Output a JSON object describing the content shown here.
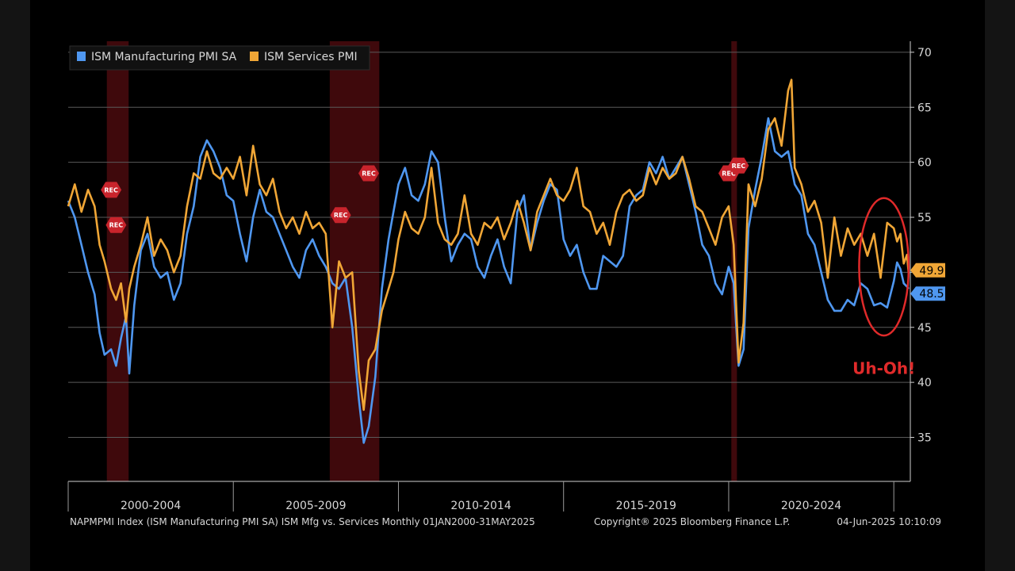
{
  "chart_data": {
    "type": "line",
    "title": "ISM Mfg vs. Services",
    "legend": [
      {
        "name": "ISM Manufacturing PMI SA",
        "color": "#4f97f0"
      },
      {
        "name": "ISM Services PMI",
        "color": "#f0a636"
      }
    ],
    "legend_position": "top-left",
    "x_range": [
      2000.0,
      2025.5
    ],
    "ylim": [
      31,
      71
    ],
    "y_ticks": [
      35,
      40,
      45,
      50,
      55,
      60,
      65,
      70
    ],
    "y_axis_side": "right",
    "x_periods": [
      "2000-2004",
      "2005-2009",
      "2010-2014",
      "2015-2019",
      "2020-2024"
    ],
    "recession_bands": [
      [
        2001.17,
        2001.83
      ],
      [
        2007.92,
        2009.42
      ],
      [
        2020.08,
        2020.25
      ]
    ],
    "rec_markers": [
      {
        "label": "REC",
        "x": 2001.3,
        "y": 57.5
      },
      {
        "label": "REC",
        "x": 2001.45,
        "y": 54.3
      },
      {
        "label": "REC",
        "x": 2008.25,
        "y": 55.2
      },
      {
        "label": "REC",
        "x": 2009.1,
        "y": 59.0
      },
      {
        "label": "REC",
        "x": 2020.0,
        "y": 59.0
      },
      {
        "label": "REC",
        "x": 2020.3,
        "y": 59.7
      }
    ],
    "series": [
      {
        "name": "ISM Manufacturing PMI SA",
        "color": "#4f97f0",
        "last_value": "48.5",
        "points": [
          [
            2000.0,
            56.5
          ],
          [
            2000.2,
            55.0
          ],
          [
            2000.4,
            52.5
          ],
          [
            2000.6,
            50.0
          ],
          [
            2000.8,
            48.0
          ],
          [
            2000.95,
            44.5
          ],
          [
            2001.1,
            42.5
          ],
          [
            2001.3,
            43.0
          ],
          [
            2001.45,
            41.5
          ],
          [
            2001.6,
            44.0
          ],
          [
            2001.75,
            46.0
          ],
          [
            2001.85,
            40.8
          ],
          [
            2002.0,
            47.0
          ],
          [
            2002.2,
            52.0
          ],
          [
            2002.4,
            53.5
          ],
          [
            2002.6,
            50.5
          ],
          [
            2002.8,
            49.5
          ],
          [
            2003.0,
            50.0
          ],
          [
            2003.2,
            47.5
          ],
          [
            2003.4,
            49.0
          ],
          [
            2003.6,
            53.5
          ],
          [
            2003.8,
            56.0
          ],
          [
            2004.0,
            60.5
          ],
          [
            2004.2,
            62.0
          ],
          [
            2004.4,
            61.0
          ],
          [
            2004.6,
            59.5
          ],
          [
            2004.8,
            57.0
          ],
          [
            2005.0,
            56.5
          ],
          [
            2005.2,
            53.5
          ],
          [
            2005.4,
            51.0
          ],
          [
            2005.6,
            55.0
          ],
          [
            2005.8,
            57.5
          ],
          [
            2006.0,
            55.5
          ],
          [
            2006.2,
            55.0
          ],
          [
            2006.4,
            53.5
          ],
          [
            2006.6,
            52.0
          ],
          [
            2006.8,
            50.5
          ],
          [
            2007.0,
            49.5
          ],
          [
            2007.2,
            52.0
          ],
          [
            2007.4,
            53.0
          ],
          [
            2007.6,
            51.5
          ],
          [
            2007.8,
            50.5
          ],
          [
            2008.0,
            49.0
          ],
          [
            2008.2,
            48.5
          ],
          [
            2008.4,
            49.5
          ],
          [
            2008.6,
            45.0
          ],
          [
            2008.8,
            38.5
          ],
          [
            2008.95,
            34.5
          ],
          [
            2009.1,
            36.0
          ],
          [
            2009.3,
            40.5
          ],
          [
            2009.5,
            48.5
          ],
          [
            2009.7,
            53.0
          ],
          [
            2009.85,
            55.5
          ],
          [
            2010.0,
            58.0
          ],
          [
            2010.2,
            59.5
          ],
          [
            2010.4,
            57.0
          ],
          [
            2010.6,
            56.5
          ],
          [
            2010.8,
            58.0
          ],
          [
            2011.0,
            61.0
          ],
          [
            2011.2,
            60.0
          ],
          [
            2011.4,
            55.0
          ],
          [
            2011.6,
            51.0
          ],
          [
            2011.8,
            52.5
          ],
          [
            2012.0,
            53.5
          ],
          [
            2012.2,
            53.0
          ],
          [
            2012.4,
            50.5
          ],
          [
            2012.6,
            49.5
          ],
          [
            2012.8,
            51.5
          ],
          [
            2013.0,
            53.0
          ],
          [
            2013.2,
            50.5
          ],
          [
            2013.4,
            49.0
          ],
          [
            2013.6,
            55.5
          ],
          [
            2013.8,
            57.0
          ],
          [
            2014.0,
            52.0
          ],
          [
            2014.2,
            54.5
          ],
          [
            2014.4,
            56.5
          ],
          [
            2014.6,
            58.0
          ],
          [
            2014.8,
            57.5
          ],
          [
            2015.0,
            53.0
          ],
          [
            2015.2,
            51.5
          ],
          [
            2015.4,
            52.5
          ],
          [
            2015.6,
            50.0
          ],
          [
            2015.8,
            48.5
          ],
          [
            2016.0,
            48.5
          ],
          [
            2016.2,
            51.5
          ],
          [
            2016.4,
            51.0
          ],
          [
            2016.6,
            50.5
          ],
          [
            2016.8,
            51.5
          ],
          [
            2017.0,
            56.0
          ],
          [
            2017.2,
            57.0
          ],
          [
            2017.4,
            57.5
          ],
          [
            2017.6,
            60.0
          ],
          [
            2017.8,
            59.0
          ],
          [
            2018.0,
            60.5
          ],
          [
            2018.2,
            58.5
          ],
          [
            2018.4,
            59.5
          ],
          [
            2018.6,
            60.5
          ],
          [
            2018.8,
            58.0
          ],
          [
            2019.0,
            55.5
          ],
          [
            2019.2,
            52.5
          ],
          [
            2019.4,
            51.5
          ],
          [
            2019.6,
            49.0
          ],
          [
            2019.8,
            48.0
          ],
          [
            2020.0,
            50.5
          ],
          [
            2020.15,
            49.0
          ],
          [
            2020.3,
            41.5
          ],
          [
            2020.45,
            43.0
          ],
          [
            2020.6,
            54.0
          ],
          [
            2020.8,
            57.5
          ],
          [
            2021.0,
            60.5
          ],
          [
            2021.2,
            64.0
          ],
          [
            2021.4,
            61.0
          ],
          [
            2021.6,
            60.5
          ],
          [
            2021.8,
            61.0
          ],
          [
            2022.0,
            58.0
          ],
          [
            2022.2,
            57.0
          ],
          [
            2022.4,
            53.5
          ],
          [
            2022.6,
            52.5
          ],
          [
            2022.8,
            50.0
          ],
          [
            2023.0,
            47.5
          ],
          [
            2023.2,
            46.5
          ],
          [
            2023.4,
            46.5
          ],
          [
            2023.6,
            47.5
          ],
          [
            2023.8,
            47.0
          ],
          [
            2024.0,
            49.0
          ],
          [
            2024.2,
            48.5
          ],
          [
            2024.4,
            47.0
          ],
          [
            2024.6,
            47.2
          ],
          [
            2024.8,
            46.8
          ],
          [
            2025.0,
            49.2
          ],
          [
            2025.1,
            50.9
          ],
          [
            2025.2,
            50.3
          ],
          [
            2025.3,
            49.0
          ],
          [
            2025.4,
            48.7
          ],
          [
            2025.45,
            48.5
          ]
        ]
      },
      {
        "name": "ISM Services PMI",
        "color": "#f0a636",
        "last_value": "49.9",
        "points": [
          [
            2000.0,
            56.0
          ],
          [
            2000.2,
            58.0
          ],
          [
            2000.4,
            55.5
          ],
          [
            2000.6,
            57.5
          ],
          [
            2000.8,
            56.0
          ],
          [
            2000.95,
            52.5
          ],
          [
            2001.1,
            51.0
          ],
          [
            2001.3,
            48.5
          ],
          [
            2001.45,
            47.5
          ],
          [
            2001.6,
            49.0
          ],
          [
            2001.75,
            45.5
          ],
          [
            2001.85,
            48.5
          ],
          [
            2002.0,
            50.5
          ],
          [
            2002.2,
            52.5
          ],
          [
            2002.4,
            55.0
          ],
          [
            2002.6,
            51.5
          ],
          [
            2002.8,
            53.0
          ],
          [
            2003.0,
            52.0
          ],
          [
            2003.2,
            50.0
          ],
          [
            2003.4,
            51.5
          ],
          [
            2003.6,
            56.0
          ],
          [
            2003.8,
            59.0
          ],
          [
            2004.0,
            58.5
          ],
          [
            2004.2,
            61.0
          ],
          [
            2004.4,
            59.0
          ],
          [
            2004.6,
            58.5
          ],
          [
            2004.8,
            59.5
          ],
          [
            2005.0,
            58.5
          ],
          [
            2005.2,
            60.5
          ],
          [
            2005.4,
            57.0
          ],
          [
            2005.6,
            61.5
          ],
          [
            2005.8,
            58.0
          ],
          [
            2006.0,
            57.0
          ],
          [
            2006.2,
            58.5
          ],
          [
            2006.4,
            55.5
          ],
          [
            2006.6,
            54.0
          ],
          [
            2006.8,
            55.0
          ],
          [
            2007.0,
            53.5
          ],
          [
            2007.2,
            55.5
          ],
          [
            2007.4,
            54.0
          ],
          [
            2007.6,
            54.5
          ],
          [
            2007.8,
            53.5
          ],
          [
            2008.0,
            45.0
          ],
          [
            2008.2,
            51.0
          ],
          [
            2008.4,
            49.5
          ],
          [
            2008.6,
            50.0
          ],
          [
            2008.8,
            41.0
          ],
          [
            2008.95,
            37.5
          ],
          [
            2009.1,
            42.0
          ],
          [
            2009.3,
            43.0
          ],
          [
            2009.5,
            46.5
          ],
          [
            2009.7,
            48.5
          ],
          [
            2009.85,
            50.0
          ],
          [
            2010.0,
            53.0
          ],
          [
            2010.2,
            55.5
          ],
          [
            2010.4,
            54.0
          ],
          [
            2010.6,
            53.5
          ],
          [
            2010.8,
            55.0
          ],
          [
            2011.0,
            59.5
          ],
          [
            2011.2,
            54.5
          ],
          [
            2011.4,
            53.0
          ],
          [
            2011.6,
            52.5
          ],
          [
            2011.8,
            53.5
          ],
          [
            2012.0,
            57.0
          ],
          [
            2012.2,
            53.5
          ],
          [
            2012.4,
            52.5
          ],
          [
            2012.6,
            54.5
          ],
          [
            2012.8,
            54.0
          ],
          [
            2013.0,
            55.0
          ],
          [
            2013.2,
            53.0
          ],
          [
            2013.4,
            54.5
          ],
          [
            2013.6,
            56.5
          ],
          [
            2013.8,
            54.5
          ],
          [
            2014.0,
            52.0
          ],
          [
            2014.2,
            55.5
          ],
          [
            2014.4,
            57.0
          ],
          [
            2014.6,
            58.5
          ],
          [
            2014.8,
            57.0
          ],
          [
            2015.0,
            56.5
          ],
          [
            2015.2,
            57.5
          ],
          [
            2015.4,
            59.5
          ],
          [
            2015.6,
            56.0
          ],
          [
            2015.8,
            55.5
          ],
          [
            2016.0,
            53.5
          ],
          [
            2016.2,
            54.5
          ],
          [
            2016.4,
            52.5
          ],
          [
            2016.6,
            55.5
          ],
          [
            2016.8,
            57.0
          ],
          [
            2017.0,
            57.5
          ],
          [
            2017.2,
            56.5
          ],
          [
            2017.4,
            57.0
          ],
          [
            2017.6,
            59.5
          ],
          [
            2017.8,
            58.0
          ],
          [
            2018.0,
            59.5
          ],
          [
            2018.2,
            58.5
          ],
          [
            2018.4,
            59.0
          ],
          [
            2018.6,
            60.5
          ],
          [
            2018.8,
            58.5
          ],
          [
            2019.0,
            56.0
          ],
          [
            2019.2,
            55.5
          ],
          [
            2019.4,
            54.0
          ],
          [
            2019.6,
            52.5
          ],
          [
            2019.8,
            55.0
          ],
          [
            2020.0,
            56.0
          ],
          [
            2020.15,
            52.5
          ],
          [
            2020.3,
            41.8
          ],
          [
            2020.45,
            45.4
          ],
          [
            2020.6,
            58.0
          ],
          [
            2020.8,
            56.0
          ],
          [
            2021.0,
            58.5
          ],
          [
            2021.2,
            63.0
          ],
          [
            2021.4,
            64.0
          ],
          [
            2021.6,
            61.5
          ],
          [
            2021.8,
            66.5
          ],
          [
            2021.9,
            67.5
          ],
          [
            2022.0,
            59.5
          ],
          [
            2022.2,
            58.0
          ],
          [
            2022.4,
            55.5
          ],
          [
            2022.6,
            56.5
          ],
          [
            2022.8,
            54.5
          ],
          [
            2023.0,
            49.5
          ],
          [
            2023.2,
            55.0
          ],
          [
            2023.4,
            51.5
          ],
          [
            2023.6,
            54.0
          ],
          [
            2023.8,
            52.5
          ],
          [
            2024.0,
            53.5
          ],
          [
            2024.2,
            51.5
          ],
          [
            2024.4,
            53.5
          ],
          [
            2024.6,
            49.5
          ],
          [
            2024.8,
            54.5
          ],
          [
            2025.0,
            54.0
          ],
          [
            2025.1,
            52.8
          ],
          [
            2025.2,
            53.5
          ],
          [
            2025.3,
            50.8
          ],
          [
            2025.4,
            51.6
          ],
          [
            2025.45,
            49.9
          ]
        ]
      }
    ],
    "annotation": {
      "text": "Uh-Oh!",
      "color": "#e02a2a",
      "ellipse_center": [
        2024.7,
        50.5
      ],
      "ellipse_span_x": 1.5,
      "ellipse_span_y": 12.5
    }
  },
  "footer": {
    "left": "NAPMPMI Index (ISM Manufacturing PMI SA) ISM Mfg vs. Services  Monthly 01JAN2000-31MAY2025",
    "center": "Copyright® 2025 Bloomberg Finance L.P.",
    "right": "04-Jun-2025 10:10:09"
  }
}
